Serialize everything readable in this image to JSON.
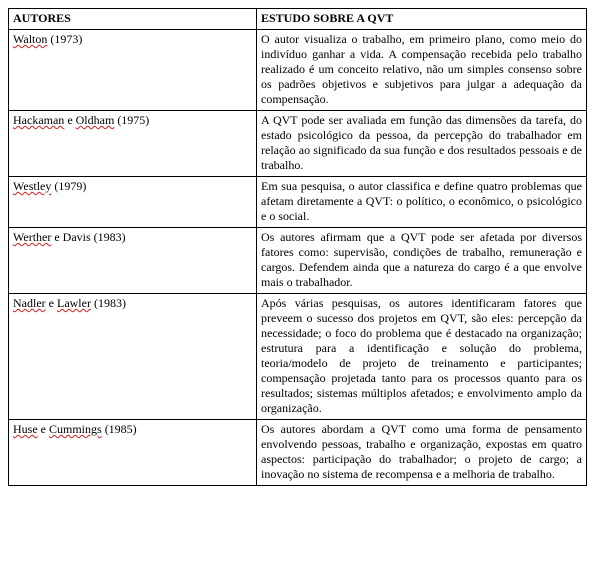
{
  "table": {
    "headers": {
      "autores": "AUTORES",
      "estudo": "ESTUDO SOBRE A QVT"
    },
    "rows": [
      {
        "author_parts": [
          {
            "t": "Walton",
            "spell": true
          },
          {
            "t": " (1973)",
            "spell": false
          }
        ],
        "study": "O autor visualiza o trabalho, em primeiro plano, como meio do indivíduo ganhar a vida. A compensação recebida pelo trabalho realizado é um conceito relativo, não um simples consenso sobre os padrões objetivos e subjetivos para julgar a adequação da compensação."
      },
      {
        "author_parts": [
          {
            "t": "Hackaman",
            "spell": true
          },
          {
            "t": " e ",
            "spell": false
          },
          {
            "t": "Oldham",
            "spell": true
          },
          {
            "t": " (1975)",
            "spell": false
          }
        ],
        "study": "A QVT pode ser avaliada em função das dimensões da tarefa, do estado psicológico da pessoa, da percepção do trabalhador em relação ao significado da sua função e dos resultados pessoais e de trabalho."
      },
      {
        "author_parts": [
          {
            "t": "Westley",
            "spell": true
          },
          {
            "t": " (1979)",
            "spell": false
          }
        ],
        "study": "Em sua pesquisa, o autor classifica e define quatro problemas que afetam diretamente a QVT: o político, o econômico, o psicológico e o social."
      },
      {
        "author_parts": [
          {
            "t": "Werther",
            "spell": true
          },
          {
            "t": " e Davis (1983)",
            "spell": false
          }
        ],
        "study": "Os autores afirmam que a QVT pode ser afetada por diversos fatores como: supervisão, condições de trabalho, remuneração e cargos. Defendem ainda que a natureza do cargo é a que envolve mais o trabalhador."
      },
      {
        "author_parts": [
          {
            "t": "Nadler",
            "spell": true
          },
          {
            "t": " e ",
            "spell": false
          },
          {
            "t": "Lawler",
            "spell": true
          },
          {
            "t": " (1983)",
            "spell": false
          }
        ],
        "study": "Após várias pesquisas, os autores identificaram fatores que preveem o sucesso dos projetos em QVT, são eles: percepção da necessidade; o foco do problema que é destacado na organização; estrutura para a identificação e solução do problema, teoria/modelo de projeto de treinamento e participantes; compensação projetada tanto para os processos quanto para os resultados; sistemas múltiplos afetados; e envolvimento amplo da organização."
      },
      {
        "author_parts": [
          {
            "t": "Huse",
            "spell": true
          },
          {
            "t": " e ",
            "spell": false
          },
          {
            "t": "Cummings",
            "spell": true
          },
          {
            "t": " (1985)",
            "spell": false
          }
        ],
        "study": "Os autores abordam a QVT como uma forma de pensamento envolvendo pessoas, trabalho e organização, expostas em quatro aspectos: participação do trabalhador; o projeto de cargo; a inovação no sistema de recompensa e a melhoria de trabalho."
      }
    ],
    "colors": {
      "text": "#000000",
      "background": "#ffffff",
      "border": "#000000",
      "spell_underline": "#d02020"
    },
    "font": {
      "family": "Times New Roman",
      "size_pt": 9
    }
  }
}
